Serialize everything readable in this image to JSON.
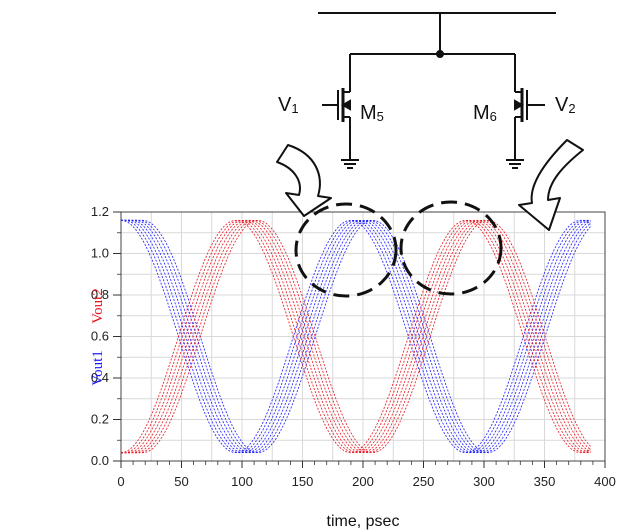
{
  "chart_data": {
    "type": "line",
    "xlabel": "time, psec",
    "ylabels": [
      {
        "text": "Vout1",
        "color": "#1a1aff"
      },
      {
        "text": "Vout2",
        "color": "#e8141e"
      }
    ],
    "xlim": [
      0,
      400
    ],
    "ylim": [
      0.0,
      1.2
    ],
    "x_ticks": [
      "0",
      "50",
      "100",
      "150",
      "200",
      "250",
      "300",
      "350",
      "400"
    ],
    "y_ticks": [
      "0.0",
      "0.2",
      "0.4",
      "0.6",
      "0.8",
      "1.0",
      "1.2"
    ],
    "grid": true,
    "series": [
      {
        "color": "#1a1aff",
        "phase_shifts": [
          0,
          3,
          6,
          9,
          12,
          15,
          18
        ],
        "waveform": "cos",
        "high": 1.16,
        "low": 0.04,
        "period": 190,
        "t_start": 0,
        "t_end": 388
      },
      {
        "color": "#e8141e",
        "phase_shifts": [
          0,
          3,
          6,
          9,
          12,
          15,
          18
        ],
        "waveform": "-cos",
        "high": 1.16,
        "low": 0.04,
        "period": 190,
        "t_start": 0,
        "t_end": 388
      }
    ]
  },
  "circuit": {
    "labels": {
      "v1": "V",
      "v1_sub": "1",
      "m5": "M",
      "m5_sub": "5",
      "m6": "M",
      "m6_sub": "6",
      "v2": "V",
      "v2_sub": "2"
    }
  }
}
